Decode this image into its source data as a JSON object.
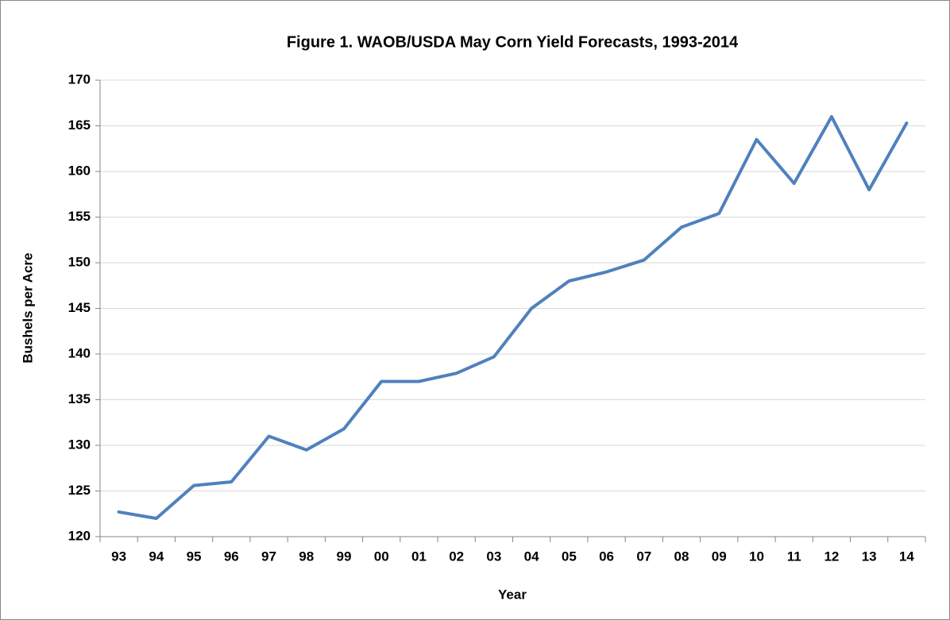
{
  "chart_data": {
    "type": "line",
    "title": "Figure 1. WAOB/USDA May Corn Yield Forecasts, 1993-2014",
    "x_label": "Year",
    "y_label": "Bushels per Acre",
    "categories": [
      "93",
      "94",
      "95",
      "96",
      "97",
      "98",
      "99",
      "00",
      "01",
      "02",
      "03",
      "04",
      "05",
      "06",
      "07",
      "08",
      "09",
      "10",
      "11",
      "12",
      "13",
      "14"
    ],
    "values": [
      122.7,
      122,
      125.6,
      126,
      131,
      129.5,
      131.8,
      137,
      137,
      137.9,
      139.7,
      145,
      148,
      149,
      150.3,
      153.9,
      155.4,
      163.5,
      158.7,
      166,
      158,
      165.3
    ],
    "color": "#4f81bd",
    "ylim": [
      120,
      170
    ],
    "yticks": [
      120,
      125,
      130,
      135,
      140,
      145,
      150,
      155,
      160,
      165,
      170
    ],
    "grid": true
  }
}
